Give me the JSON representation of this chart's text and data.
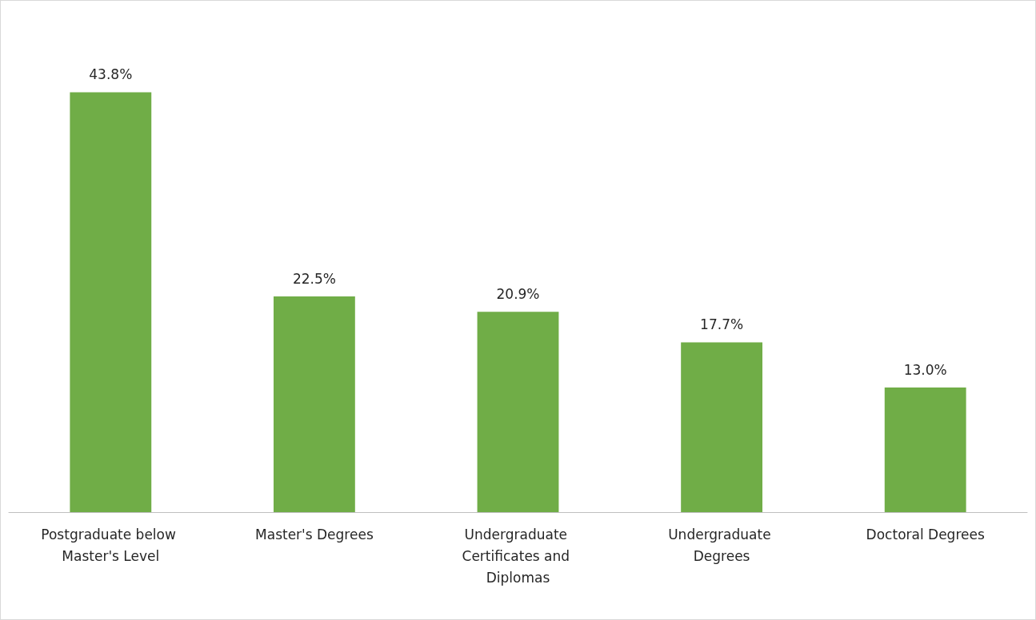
{
  "chart_data": {
    "type": "bar",
    "categories": [
      "Postgraduate below Master's Level",
      "Master's Degrees",
      "Undergraduate Certificates and Diplomas",
      "Undergraduate Degrees",
      "Doctoral Degrees"
    ],
    "values": [
      43.8,
      22.5,
      20.9,
      17.7,
      13.0
    ],
    "value_labels": [
      "43.8%",
      "22.5%",
      "20.9%",
      "17.7%",
      "13.0%"
    ],
    "color": "#70ad47",
    "grid": false
  }
}
